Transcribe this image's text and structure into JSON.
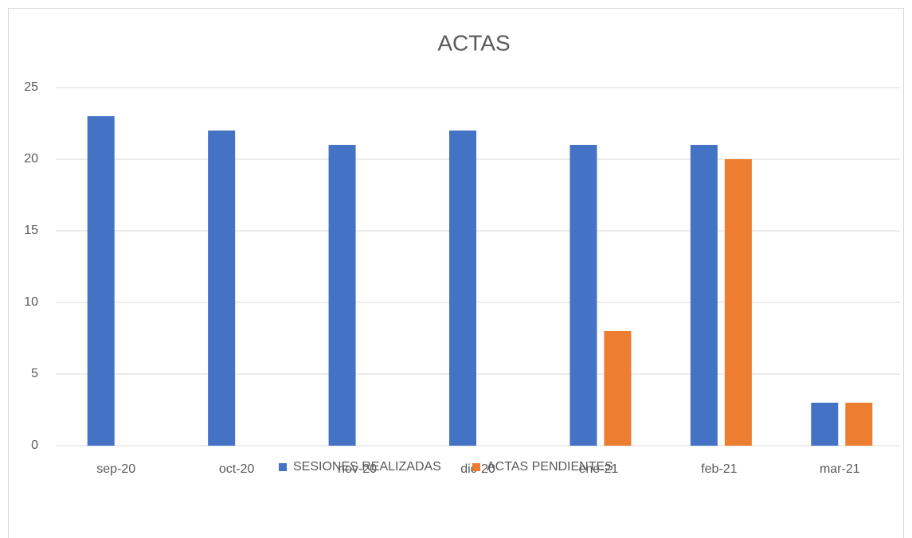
{
  "chart_data": {
    "type": "bar",
    "title": "ACTAS",
    "categories": [
      "sep-20",
      "oct-20",
      "nov-20",
      "dic-20",
      "ene-21",
      "feb-21",
      "mar-21"
    ],
    "series": [
      {
        "name": "SESIONES REALIZADAS",
        "color": "#4472c4",
        "values": [
          23,
          22,
          21,
          22,
          21,
          21,
          3
        ]
      },
      {
        "name": "ACTAS PENDIENTES",
        "color": "#ed7d31",
        "values": [
          null,
          null,
          null,
          null,
          8,
          20,
          3
        ]
      }
    ],
    "ylim": [
      0,
      25
    ],
    "yticks": [
      0,
      5,
      10,
      15,
      20,
      25
    ],
    "grid": true,
    "legend": "bottom"
  }
}
